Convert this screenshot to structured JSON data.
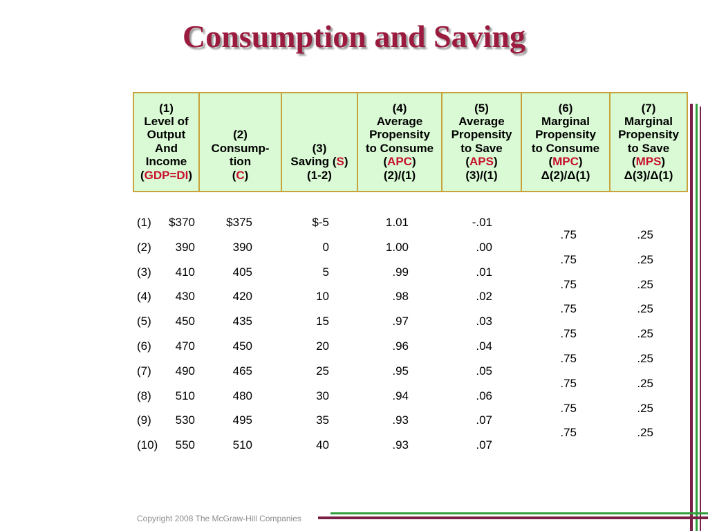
{
  "title": "Consumption and Saving",
  "headers": [
    {
      "lines": [
        "(1)",
        "Level of",
        "Output",
        "And",
        "Income"
      ],
      "paren_open": "(",
      "accent": "GDP=DI",
      "paren_close": ")"
    },
    {
      "lines": [
        "(2)",
        "Consump-",
        "tion"
      ],
      "paren_open": "(",
      "accent": "C",
      "paren_close": ")"
    },
    {
      "lines": [
        "(3)",
        "Saving ("
      ],
      "accent_inline": "S",
      "inline_close": ")",
      "extra": "(1-2)"
    },
    {
      "lines": [
        "(4)",
        "Average",
        "Propensity",
        "to Consume"
      ],
      "paren_open": "(",
      "accent": "APC",
      "paren_close": ")",
      "extra": "(2)/(1)"
    },
    {
      "lines": [
        "(5)",
        "Average",
        "Propensity",
        "to Save"
      ],
      "paren_open": "(",
      "accent": "APS",
      "paren_close": ")",
      "extra": "(3)/(1)"
    },
    {
      "lines": [
        "(6)",
        "Marginal",
        "Propensity",
        "to Consume"
      ],
      "paren_open": "(",
      "accent": "MPC",
      "paren_close": ")",
      "extra": "Δ(2)/Δ(1)"
    },
    {
      "lines": [
        "(7)",
        "Marginal",
        "Propensity",
        "to Save"
      ],
      "paren_open": "(",
      "accent": "MPS",
      "paren_close": ")",
      "extra": "Δ(3)/Δ(1)"
    }
  ],
  "rows": [
    {
      "num": "(1)",
      "income": "$370",
      "consumption": "$375",
      "saving": "$-5",
      "apc": "1.01",
      "aps": "-.01"
    },
    {
      "num": "(2)",
      "income": "390",
      "consumption": "390",
      "saving": "0",
      "apc": "1.00",
      "aps": ".00"
    },
    {
      "num": "(3)",
      "income": "410",
      "consumption": "405",
      "saving": "5",
      "apc": ".99",
      "aps": ".01"
    },
    {
      "num": "(4)",
      "income": "430",
      "consumption": "420",
      "saving": "10",
      "apc": ".98",
      "aps": ".02"
    },
    {
      "num": "(5)",
      "income": "450",
      "consumption": "435",
      "saving": "15",
      "apc": ".97",
      "aps": ".03"
    },
    {
      "num": "(6)",
      "income": "470",
      "consumption": "450",
      "saving": "20",
      "apc": ".96",
      "aps": ".04"
    },
    {
      "num": "(7)",
      "income": "490",
      "consumption": "465",
      "saving": "25",
      "apc": ".95",
      "aps": ".05"
    },
    {
      "num": "(8)",
      "income": "510",
      "consumption": "480",
      "saving": "30",
      "apc": ".94",
      "aps": ".06"
    },
    {
      "num": "(9)",
      "income": "530",
      "consumption": "495",
      "saving": "35",
      "apc": ".93",
      "aps": ".07"
    },
    {
      "num": "(10)",
      "income": "550",
      "consumption": "510",
      "saving": "40",
      "apc": ".93",
      "aps": ".07"
    }
  ],
  "marginals": [
    {
      "mpc": ".75",
      "mps": ".25"
    },
    {
      "mpc": ".75",
      "mps": ".25"
    },
    {
      "mpc": ".75",
      "mps": ".25"
    },
    {
      "mpc": ".75",
      "mps": ".25"
    },
    {
      "mpc": ".75",
      "mps": ".25"
    },
    {
      "mpc": ".75",
      "mps": ".25"
    },
    {
      "mpc": ".75",
      "mps": ".25"
    },
    {
      "mpc": ".75",
      "mps": ".25"
    },
    {
      "mpc": ".75",
      "mps": ".25"
    }
  ],
  "copyright": "Copyright 2008 The McGraw-Hill Companies",
  "colors": {
    "title": "#9b1b3f",
    "accent": "#c8102e",
    "header_bg": "#d9fad4",
    "border": "#c8a23a",
    "deco_maroon": "#7a1f45",
    "deco_green": "#2e9e3a"
  }
}
